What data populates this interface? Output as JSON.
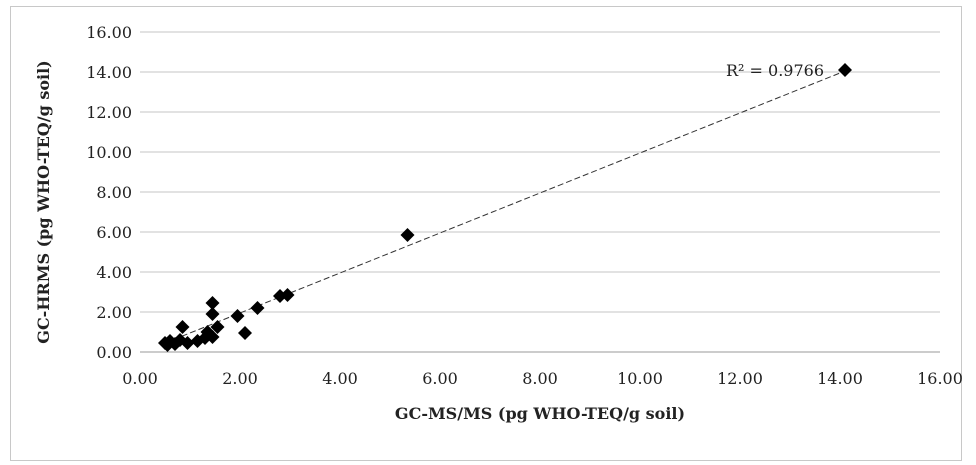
{
  "chart_data": {
    "type": "scatter",
    "title": "",
    "xlabel": "GC-MS/MS (pg WHO-TEQ/g soil)",
    "ylabel": "GC-HRMS (pg WHO-TEQ/g soil)",
    "xlim": [
      0,
      16
    ],
    "ylim": [
      0,
      16
    ],
    "x_ticks": [
      "0.00",
      "2.00",
      "4.00",
      "6.00",
      "8.00",
      "10.00",
      "12.00",
      "14.00",
      "16.00"
    ],
    "y_ticks": [
      "0.00",
      "2.00",
      "4.00",
      "6.00",
      "8.00",
      "10.00",
      "12.00",
      "14.00",
      "16.00"
    ],
    "grid": "horizontal",
    "legend": "none",
    "marker": "diamond",
    "marker_color": "#000000",
    "trendline": {
      "type": "linear",
      "style": "dashed",
      "color": "#333333",
      "from": [
        0.5,
        0.45
      ],
      "to": [
        14.1,
        14.05
      ]
    },
    "annotation": {
      "text": "R² = 0.9766"
    },
    "points": [
      {
        "x": 0.5,
        "y": 0.45
      },
      {
        "x": 0.55,
        "y": 0.35
      },
      {
        "x": 0.6,
        "y": 0.55
      },
      {
        "x": 0.7,
        "y": 0.4
      },
      {
        "x": 0.8,
        "y": 0.6
      },
      {
        "x": 0.85,
        "y": 1.25
      },
      {
        "x": 0.95,
        "y": 0.45
      },
      {
        "x": 1.15,
        "y": 0.55
      },
      {
        "x": 1.3,
        "y": 0.7
      },
      {
        "x": 1.35,
        "y": 1.0
      },
      {
        "x": 1.45,
        "y": 0.75
      },
      {
        "x": 1.45,
        "y": 1.9
      },
      {
        "x": 1.45,
        "y": 2.45
      },
      {
        "x": 1.55,
        "y": 1.25
      },
      {
        "x": 1.95,
        "y": 1.8
      },
      {
        "x": 2.1,
        "y": 0.95
      },
      {
        "x": 2.35,
        "y": 2.2
      },
      {
        "x": 2.8,
        "y": 2.8
      },
      {
        "x": 2.95,
        "y": 2.85
      },
      {
        "x": 5.35,
        "y": 5.85
      },
      {
        "x": 14.1,
        "y": 14.1
      }
    ]
  }
}
